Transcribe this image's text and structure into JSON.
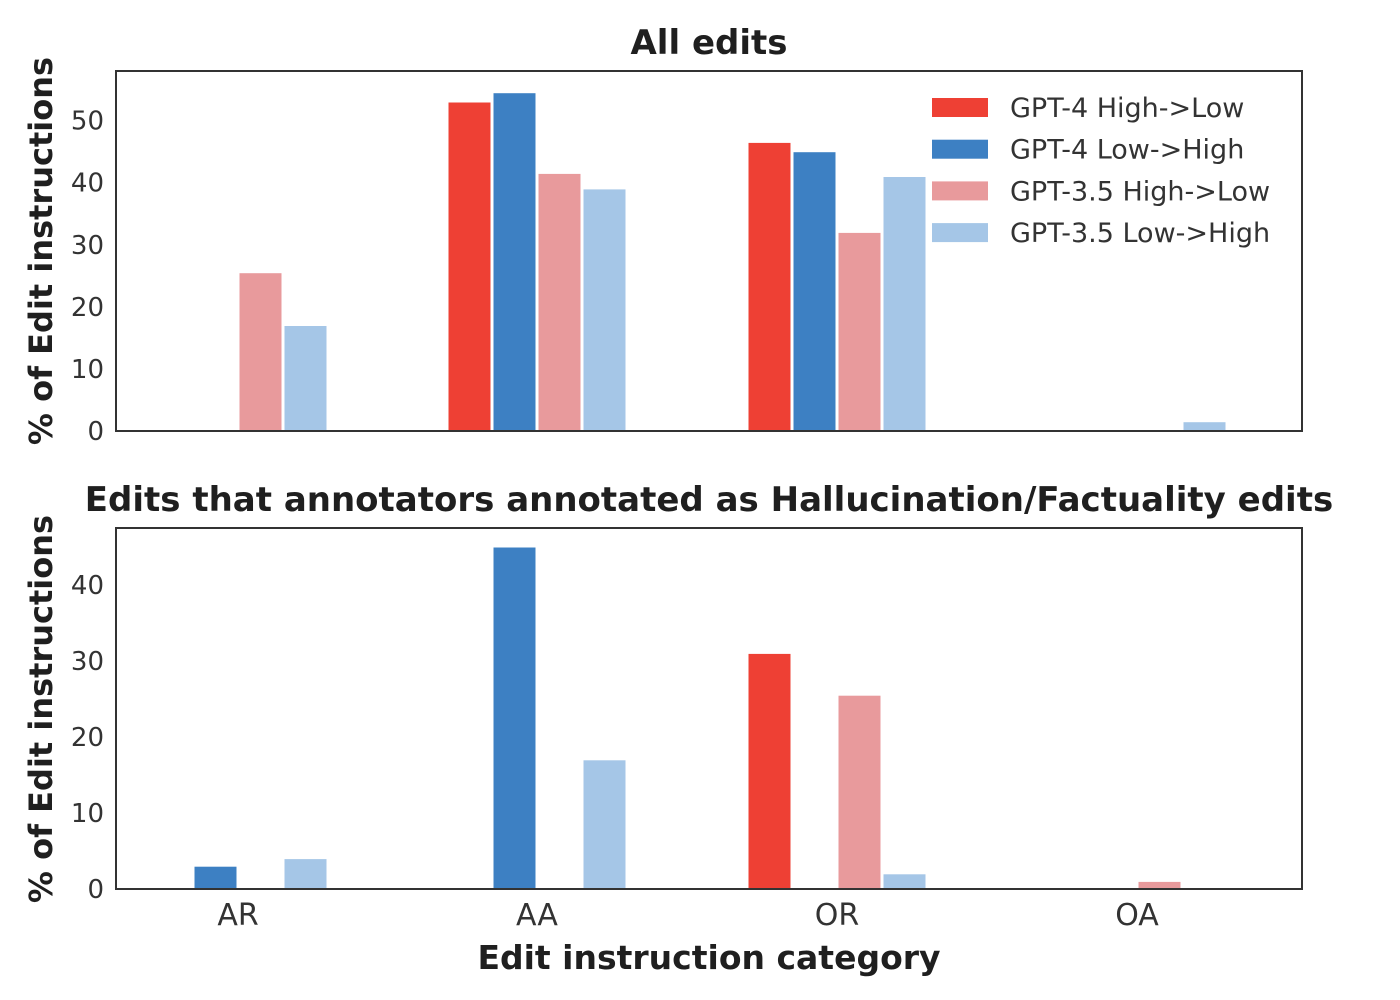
{
  "chart_data": [
    {
      "type": "bar",
      "title": "All edits",
      "xlabel": "",
      "ylabel": "% of Edit instructions",
      "categories": [
        "AR",
        "AA",
        "OR",
        "OA"
      ],
      "ylim": [
        0,
        58
      ],
      "yticks": [
        0,
        10,
        20,
        30,
        40,
        50
      ],
      "grid": false,
      "legend_position": "top-right",
      "series": [
        {
          "name": "GPT-4 High->Low",
          "color": "#ee4034",
          "values": [
            0,
            53,
            46.5,
            0
          ]
        },
        {
          "name": "GPT-4 Low->High",
          "color": "#3d80c3",
          "values": [
            0,
            54.5,
            45,
            0
          ]
        },
        {
          "name": "GPT-3.5 High->Low",
          "color": "#e89a9c",
          "values": [
            25.5,
            41.5,
            32,
            0
          ]
        },
        {
          "name": "GPT-3.5 Low->High",
          "color": "#a5c6e7",
          "values": [
            17,
            39,
            41,
            1.5
          ]
        }
      ]
    },
    {
      "type": "bar",
      "title": "Edits that annotators annotated as Hallucination/Factuality edits",
      "xlabel": "Edit instruction category",
      "ylabel": "% of Edit instructions",
      "categories": [
        "AR",
        "AA",
        "OR",
        "OA"
      ],
      "ylim": [
        0,
        47.5
      ],
      "yticks": [
        0,
        10,
        20,
        30,
        40
      ],
      "grid": false,
      "series": [
        {
          "name": "GPT-4 High->Low",
          "color": "#ee4034",
          "values": [
            0,
            0,
            31,
            0
          ]
        },
        {
          "name": "GPT-4 Low->High",
          "color": "#3d80c3",
          "values": [
            3,
            45,
            0,
            0
          ]
        },
        {
          "name": "GPT-3.5 High->Low",
          "color": "#e89a9c",
          "values": [
            0,
            0,
            25.5,
            1
          ]
        },
        {
          "name": "GPT-3.5 Low->High",
          "color": "#a5c6e7",
          "values": [
            4,
            17,
            2,
            0
          ]
        }
      ]
    }
  ]
}
